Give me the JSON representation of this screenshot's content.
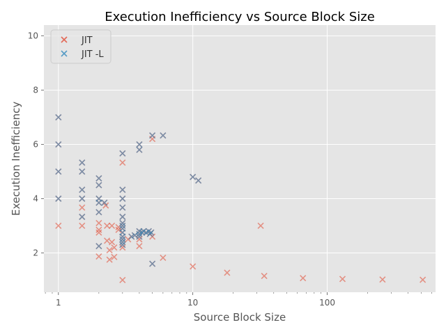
{
  "chart_data": {
    "type": "scatter",
    "title": "Execution Inefficiency vs Source Block Size",
    "xlabel": "Source Block Size",
    "ylabel": "Execution Inefficiency",
    "xscale": "log",
    "xlim": [
      0.78,
      640
    ],
    "ylim": [
      0.55,
      10.4
    ],
    "xticks": [
      {
        "value": 1,
        "label": "1"
      },
      {
        "value": 10,
        "label": "10"
      },
      {
        "value": 100,
        "label": "100"
      }
    ],
    "yticks": [
      {
        "value": 2,
        "label": "2"
      },
      {
        "value": 4,
        "label": "4"
      },
      {
        "value": 6,
        "label": "6"
      },
      {
        "value": 8,
        "label": "8"
      },
      {
        "value": 10,
        "label": "10"
      }
    ],
    "grid": true,
    "legend_position": "top-left",
    "series": [
      {
        "name": "JIT",
        "color": "#E24A33",
        "marker": "x",
        "points": [
          [
            1,
            7.0
          ],
          [
            1,
            6.0
          ],
          [
            1,
            5.0
          ],
          [
            1,
            4.0
          ],
          [
            1,
            3.0
          ],
          [
            1.5,
            5.33
          ],
          [
            1.5,
            5.0
          ],
          [
            1.5,
            4.33
          ],
          [
            1.5,
            4.0
          ],
          [
            1.5,
            3.67
          ],
          [
            1.5,
            3.33
          ],
          [
            1.5,
            3.0
          ],
          [
            2,
            4.75
          ],
          [
            2,
            4.5
          ],
          [
            2,
            4.0
          ],
          [
            2,
            3.85
          ],
          [
            2,
            3.5
          ],
          [
            2,
            3.1
          ],
          [
            2,
            2.85
          ],
          [
            2,
            2.75
          ],
          [
            2,
            2.25
          ],
          [
            2,
            1.87
          ],
          [
            2.2,
            3.85
          ],
          [
            2.25,
            3.75
          ],
          [
            2.3,
            3.0
          ],
          [
            2.3,
            2.45
          ],
          [
            2.4,
            2.1
          ],
          [
            2.4,
            1.75
          ],
          [
            2.5,
            2.4
          ],
          [
            2.5,
            3.0
          ],
          [
            2.6,
            2.2
          ],
          [
            2.6,
            1.85
          ],
          [
            2.8,
            2.95
          ],
          [
            2.8,
            2.85
          ],
          [
            3,
            5.67
          ],
          [
            3,
            5.33
          ],
          [
            3,
            4.33
          ],
          [
            3,
            4.0
          ],
          [
            3,
            3.67
          ],
          [
            3,
            3.33
          ],
          [
            3,
            3.1
          ],
          [
            3,
            3.0
          ],
          [
            3,
            2.9
          ],
          [
            3,
            2.75
          ],
          [
            3,
            2.6
          ],
          [
            3,
            2.5
          ],
          [
            3,
            2.4
          ],
          [
            3,
            2.3
          ],
          [
            3,
            2.2
          ],
          [
            3,
            1.0
          ],
          [
            3.3,
            2.5
          ],
          [
            3.5,
            2.6
          ],
          [
            3.7,
            2.65
          ],
          [
            4,
            6.0
          ],
          [
            4,
            5.8
          ],
          [
            4,
            2.8
          ],
          [
            4,
            2.7
          ],
          [
            4,
            2.6
          ],
          [
            4,
            2.5
          ],
          [
            4,
            2.25
          ],
          [
            4.2,
            2.75
          ],
          [
            4.3,
            2.8
          ],
          [
            4.5,
            2.75
          ],
          [
            4.7,
            2.8
          ],
          [
            4.8,
            2.7
          ],
          [
            4.9,
            2.75
          ],
          [
            5,
            6.33
          ],
          [
            5,
            6.2
          ],
          [
            5,
            2.6
          ],
          [
            5,
            1.6
          ],
          [
            6,
            6.33
          ],
          [
            6,
            1.82
          ],
          [
            10,
            4.8
          ],
          [
            10,
            1.5
          ],
          [
            11,
            4.67
          ],
          [
            18,
            1.27
          ],
          [
            32,
            3.0
          ],
          [
            34,
            1.15
          ],
          [
            66,
            1.07
          ],
          [
            130,
            1.04
          ],
          [
            258,
            1.02
          ],
          [
            514,
            1.01
          ]
        ]
      },
      {
        "name": "JIT -L",
        "color": "#348ABD",
        "marker": "x",
        "points": [
          [
            1,
            7.0
          ],
          [
            1,
            6.0
          ],
          [
            1,
            5.0
          ],
          [
            1,
            4.0
          ],
          [
            1.5,
            5.33
          ],
          [
            1.5,
            5.0
          ],
          [
            1.5,
            4.33
          ],
          [
            1.5,
            4.0
          ],
          [
            1.5,
            3.33
          ],
          [
            2,
            4.75
          ],
          [
            2,
            4.5
          ],
          [
            2,
            4.0
          ],
          [
            2,
            3.85
          ],
          [
            2,
            3.5
          ],
          [
            2,
            2.25
          ],
          [
            2.2,
            3.85
          ],
          [
            3,
            5.67
          ],
          [
            3,
            4.33
          ],
          [
            3,
            4.0
          ],
          [
            3,
            3.67
          ],
          [
            3,
            3.33
          ],
          [
            3,
            3.1
          ],
          [
            3,
            3.0
          ],
          [
            3,
            2.9
          ],
          [
            3,
            2.75
          ],
          [
            3,
            2.6
          ],
          [
            3,
            2.5
          ],
          [
            3,
            2.4
          ],
          [
            3,
            2.3
          ],
          [
            3.5,
            2.6
          ],
          [
            3.7,
            2.65
          ],
          [
            4,
            6.0
          ],
          [
            4,
            5.8
          ],
          [
            4,
            2.8
          ],
          [
            4,
            2.7
          ],
          [
            4,
            2.6
          ],
          [
            4.2,
            2.75
          ],
          [
            4.3,
            2.8
          ],
          [
            4.5,
            2.75
          ],
          [
            4.7,
            2.8
          ],
          [
            4.8,
            2.7
          ],
          [
            4.9,
            2.75
          ],
          [
            5,
            6.33
          ],
          [
            5,
            1.6
          ],
          [
            6,
            6.33
          ],
          [
            10,
            4.8
          ],
          [
            11,
            4.67
          ]
        ]
      }
    ]
  }
}
